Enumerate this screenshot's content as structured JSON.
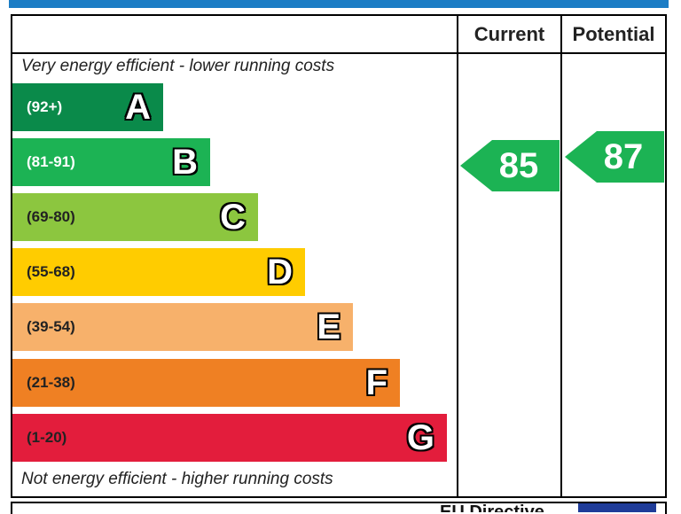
{
  "colors": {
    "top_bar": "#1c7dc5",
    "bands": [
      "#0a8a4a",
      "#1cb354",
      "#8cc63f",
      "#ffcc00",
      "#f7b16b",
      "#ef8023",
      "#e31d3c"
    ],
    "eu_flag": "#1f3c99"
  },
  "header": {
    "current_label": "Current",
    "potential_label": "Potential"
  },
  "captions": {
    "top": "Very energy efficient - lower running costs",
    "bottom": "Not energy efficient - higher running costs"
  },
  "footer": {
    "text": "EU Directive"
  },
  "chart_data": {
    "type": "bar",
    "bands": [
      {
        "letter": "A",
        "range": "(92+)"
      },
      {
        "letter": "B",
        "range": "(81-91)"
      },
      {
        "letter": "C",
        "range": "(69-80)"
      },
      {
        "letter": "D",
        "range": "(55-68)"
      },
      {
        "letter": "E",
        "range": "(39-54)"
      },
      {
        "letter": "F",
        "range": "(21-38)"
      },
      {
        "letter": "G",
        "range": "(1-20)"
      }
    ],
    "current": {
      "value": 85,
      "band": "B"
    },
    "potential": {
      "value": 87,
      "band": "B"
    }
  }
}
